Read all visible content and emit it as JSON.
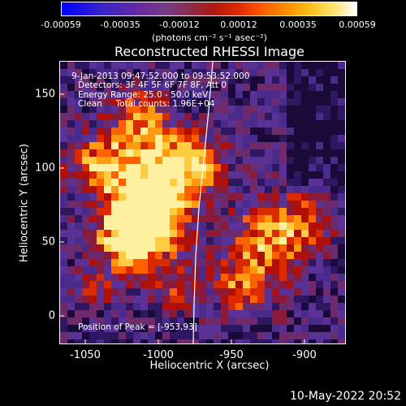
{
  "colorbar": {
    "ticks": [
      "-0.00059",
      "-0.00035",
      "-0.00012",
      "0.00012",
      "0.00035",
      "0.00059"
    ],
    "units": "(photons cm⁻² s⁻¹ asec⁻²)"
  },
  "title": "Reconstructed RHESSI Image",
  "info": {
    "time": "9-Jan-2013 09:47:52.000 to 09:53:52.000",
    "detectors": "Detectors: 3F 4F 5F 6F 7F 8F, Att 0",
    "energy": "Energy Range: 25.0 - 50.0 keV",
    "clean": "Clean     Total counts: 1.96E+04",
    "peak": "Position of Peak = [-953,93]"
  },
  "axes": {
    "xlabel": "Heliocentric X (arcsec)",
    "ylabel": "Heliocentric Y (arcsec)",
    "xticks": [
      "-1050",
      "-1000",
      "-950",
      "-900"
    ],
    "yticks": [
      "150",
      "100",
      "50",
      "0"
    ]
  },
  "timestamp": "10-May-2022 20:52"
}
